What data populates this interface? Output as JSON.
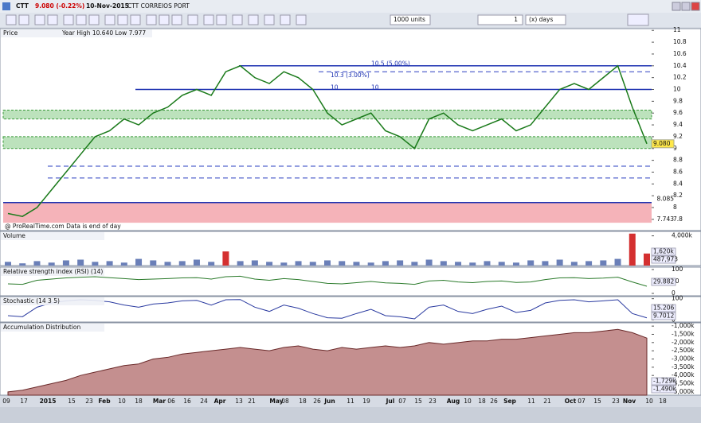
{
  "toolbar": {
    "symbol": "CTT",
    "quote": "9.080 (-0.22%)",
    "date": "10-Nov-2015",
    "name": "CTT CORREIOS PORT",
    "units": "1000 units",
    "period_count": "1",
    "period_unit": "(x) days"
  },
  "panels": {
    "price": {
      "title": "Price",
      "subtitle": "Year High 10.640 Low 7.977",
      "watermark": "@ ProRealTime.com  Data is end of day",
      "ylim": [
        7.61,
        11.03
      ],
      "yticks": [
        11,
        10.8,
        10.6,
        10.4,
        10.2,
        10,
        9.8,
        9.6,
        9.4,
        9.2,
        9,
        8.8,
        8.6,
        8.4,
        8.2,
        8,
        7.8
      ],
      "values": [
        7.9,
        7.85,
        8.0,
        8.3,
        8.6,
        8.9,
        9.2,
        9.3,
        9.5,
        9.4,
        9.6,
        9.7,
        9.9,
        10.0,
        9.9,
        10.3,
        10.4,
        10.2,
        10.1,
        10.3,
        10.2,
        10.0,
        9.6,
        9.4,
        9.5,
        9.6,
        9.3,
        9.2,
        9.0,
        9.5,
        9.6,
        9.4,
        9.3,
        9.4,
        9.5,
        9.3,
        9.4,
        9.7,
        10.0,
        10.1,
        10.0,
        10.2,
        10.4,
        9.7,
        9.08
      ],
      "color": "#1a7a1a",
      "lines": [
        10.4,
        10.0,
        8.085
      ],
      "dashed": [
        10.3,
        8.7,
        8.5
      ],
      "green_zones": [
        [
          9.5,
          9.65
        ],
        [
          9.0,
          9.2
        ]
      ],
      "red_zone": [
        7.743,
        8.085
      ],
      "annotations": [
        "10.3 (3.00%)",
        "10.5 (5.00%)",
        "10",
        "10"
      ],
      "last": {
        "value": 9.08,
        "label": "9.080"
      }
    },
    "volume": {
      "title": "Volume",
      "ylim": [
        0,
        4600
      ],
      "yticks": [
        {
          "value": 4000,
          "label": "4,000k"
        }
      ],
      "values": [
        500,
        300,
        600,
        400,
        700,
        800,
        500,
        600,
        400,
        900,
        700,
        500,
        600,
        800,
        500,
        1900,
        600,
        700,
        500,
        400,
        600,
        500,
        700,
        600,
        500,
        400,
        600,
        700,
        500,
        800,
        600,
        500,
        400,
        600,
        500,
        400,
        700,
        600,
        800,
        500,
        600,
        700,
        900,
        4300,
        1620
      ],
      "readouts": [
        "1,620k",
        "487,973"
      ]
    },
    "rsi": {
      "title": "Relative strength index (RSI) (14)",
      "ylim": [
        -10,
        110
      ],
      "yticks": [
        0,
        50,
        100
      ],
      "values": [
        40,
        38,
        55,
        60,
        65,
        68,
        70,
        66,
        62,
        58,
        60,
        62,
        65,
        66,
        60,
        70,
        72,
        60,
        55,
        62,
        58,
        50,
        42,
        40,
        45,
        50,
        44,
        42,
        38,
        52,
        55,
        48,
        45,
        50,
        52,
        46,
        48,
        58,
        65,
        66,
        62,
        64,
        68,
        48,
        29.882
      ],
      "readouts": [
        "29.882"
      ]
    },
    "stochastic": {
      "title": "Stochastic (14 3 5)",
      "ylim": [
        -10,
        110
      ],
      "yticks": [
        0,
        100
      ],
      "values": [
        20,
        15,
        60,
        80,
        90,
        95,
        92,
        85,
        70,
        60,
        75,
        80,
        90,
        92,
        70,
        95,
        96,
        60,
        40,
        70,
        55,
        30,
        10,
        8,
        30,
        50,
        20,
        15,
        5,
        60,
        70,
        40,
        30,
        50,
        65,
        35,
        45,
        80,
        92,
        95,
        85,
        90,
        95,
        30,
        9.7012
      ],
      "readouts": [
        "15.206",
        "9.7012"
      ]
    },
    "ad": {
      "title": "Accumulation Distribution",
      "ylim": [
        -5200,
        -800
      ],
      "yticks": [
        {
          "value": -1000,
          "label": "-1,000k"
        },
        {
          "value": -1500,
          "label": "-1,500k"
        },
        {
          "value": -2000,
          "label": "-2,000k"
        },
        {
          "value": -2500,
          "label": "-2,500k"
        },
        {
          "value": -3000,
          "label": "-3,000k"
        },
        {
          "value": -3500,
          "label": "-3,500k"
        },
        {
          "value": -4000,
          "label": "-4,000k"
        },
        {
          "value": -4500,
          "label": "-4,500k"
        },
        {
          "value": -5000,
          "label": "-5,000k"
        }
      ],
      "values": [
        -5000,
        -4900,
        -4700,
        -4500,
        -4300,
        -4000,
        -3800,
        -3600,
        -3400,
        -3300,
        -3000,
        -2900,
        -2700,
        -2600,
        -2500,
        -2400,
        -2300,
        -2400,
        -2500,
        -2300,
        -2200,
        -2400,
        -2500,
        -2300,
        -2400,
        -2300,
        -2200,
        -2300,
        -2200,
        -2000,
        -2100,
        -2000,
        -1900,
        -1900,
        -1800,
        -1800,
        -1700,
        -1600,
        -1500,
        -1400,
        -1400,
        -1300,
        -1200,
        -1400,
        -1729
      ],
      "readouts": [
        "-1,729k",
        "-1,490k"
      ]
    }
  },
  "x_axis": [
    "09",
    "17",
    "2015",
    "15",
    "23",
    "Feb",
    "10",
    "18",
    "Mar",
    "06",
    "16",
    "24",
    "Apr",
    "13",
    "21",
    "May",
    "08",
    "18",
    "26",
    "Jun",
    "11",
    "19",
    "Jul",
    "07",
    "15",
    "23",
    "Aug",
    "10",
    "18",
    "26",
    "Sep",
    "11",
    "21",
    "Oct",
    "07",
    "15",
    "23",
    "Nov",
    "10",
    "18"
  ]
}
